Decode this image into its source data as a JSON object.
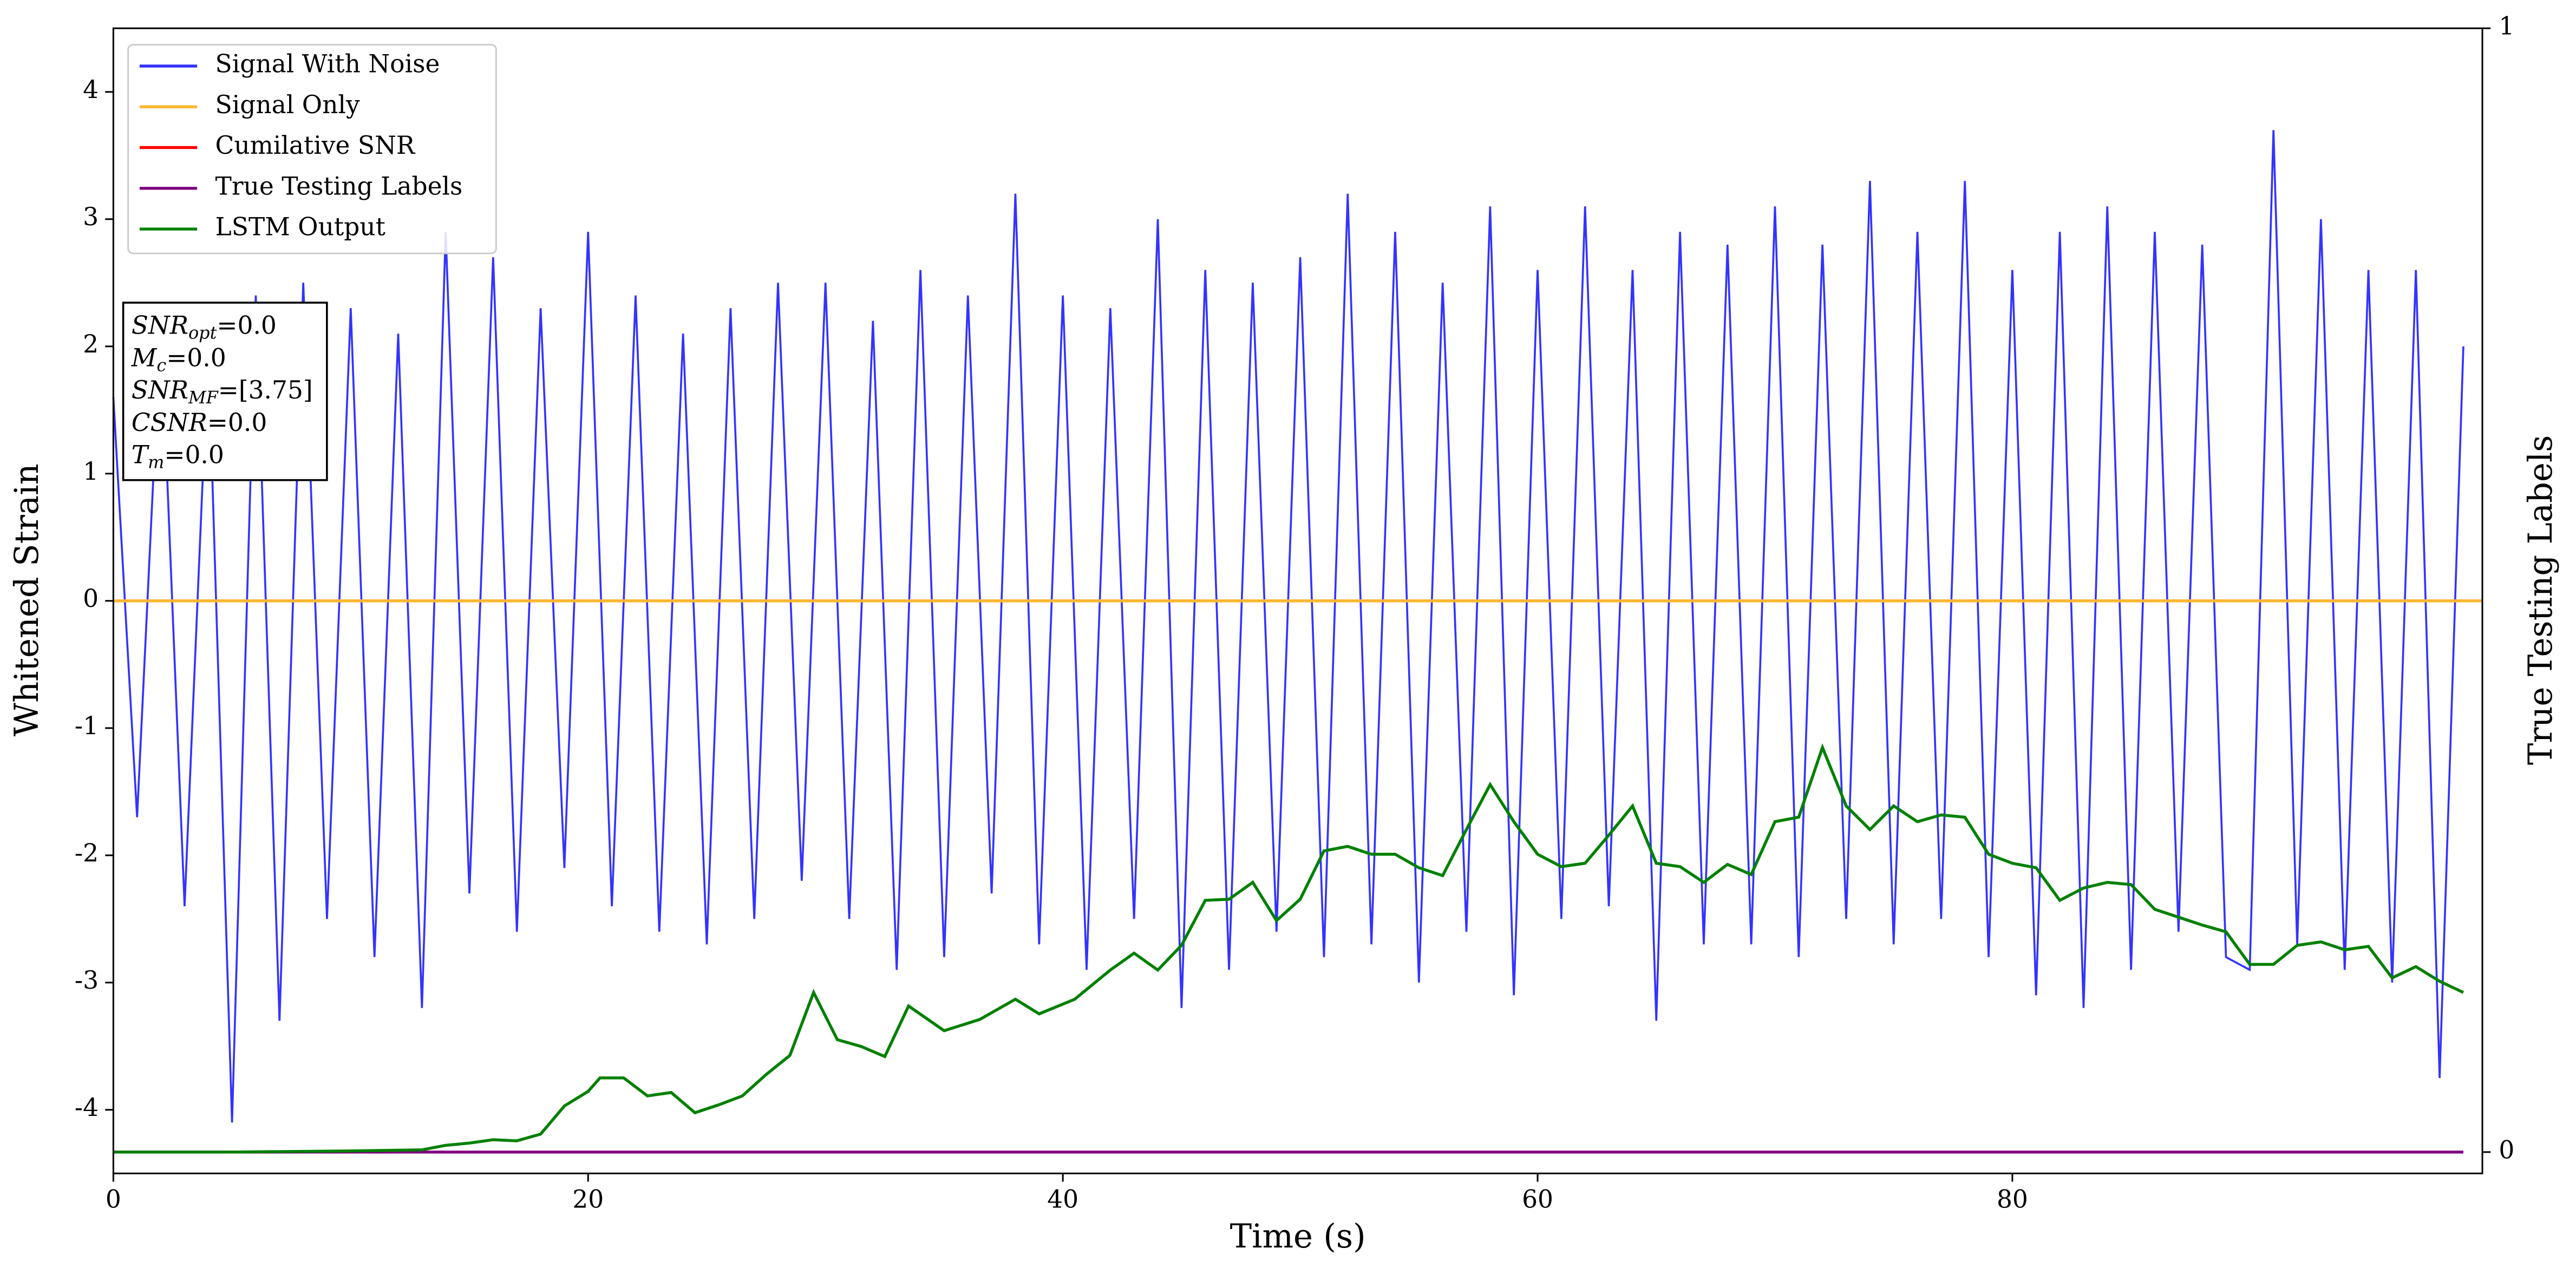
{
  "chart_data": {
    "type": "line",
    "xlabel": "Time (s)",
    "ylabel": "Whitened Strain",
    "y2label": "True Testing Labels",
    "xlim": [
      0,
      99.8
    ],
    "ylim": [
      -4.5,
      4.5
    ],
    "y2lim": [
      -0.019,
      1
    ],
    "xticks": [
      0,
      20,
      40,
      60,
      80
    ],
    "yticks": [
      -4,
      -3,
      -2,
      -1,
      0,
      1,
      2,
      3,
      4
    ],
    "y2ticks": [
      0,
      1
    ],
    "legend": "upper left",
    "annotation": [
      {
        "name": "SNR",
        "sub": "opt",
        "value": "=0.0"
      },
      {
        "name": "M",
        "sub": "c",
        "value": "=0.0"
      },
      {
        "name": "SNR",
        "sub": "MF",
        "value": "=[3.75]"
      },
      {
        "name": "CSNR",
        "value": "=0.0"
      },
      {
        "name": "T",
        "sub": "m",
        "value": "=0.0"
      }
    ],
    "series": [
      {
        "name": "Signal With Noise",
        "color": "#3333ff",
        "axis": "y",
        "x": [
          0,
          1,
          2,
          3,
          4,
          5,
          6,
          7,
          8,
          9,
          10,
          11,
          12,
          13,
          14,
          15,
          16,
          17,
          18,
          19,
          20,
          21,
          22,
          23,
          24,
          25,
          26,
          27,
          28,
          29,
          30,
          31,
          32,
          33,
          34,
          35,
          36,
          37,
          38,
          39,
          40,
          41,
          42,
          43,
          44,
          45,
          46,
          47,
          48,
          49,
          50,
          51,
          52,
          53,
          54,
          55,
          56,
          57,
          58,
          59,
          60,
          61,
          62,
          63,
          64,
          65,
          66,
          67,
          68,
          69,
          70,
          71,
          72,
          73,
          74,
          75,
          76,
          77,
          78,
          79,
          80,
          81,
          82,
          83,
          84,
          85,
          86,
          87,
          88,
          89,
          90,
          91,
          92,
          93,
          94,
          95,
          96,
          97,
          98,
          99
        ],
        "values": [
          1.6,
          -1.7,
          2.2,
          -2.4,
          2.0,
          -4.1,
          2.4,
          -3.3,
          2.5,
          -2.5,
          2.3,
          -2.8,
          2.1,
          -3.2,
          2.9,
          -2.3,
          2.7,
          -2.6,
          2.3,
          -2.1,
          2.9,
          -2.4,
          2.4,
          -2.6,
          2.1,
          -2.7,
          2.3,
          -2.5,
          2.5,
          -2.2,
          2.5,
          -2.5,
          2.2,
          -2.9,
          2.6,
          -2.8,
          2.4,
          -2.3,
          3.2,
          -2.7,
          2.4,
          -2.9,
          2.3,
          -2.5,
          3.0,
          -3.2,
          2.6,
          -2.9,
          2.5,
          -2.6,
          2.7,
          -2.8,
          3.2,
          -2.7,
          2.9,
          -3.0,
          2.5,
          -2.6,
          3.1,
          -3.1,
          2.6,
          -2.5,
          3.1,
          -2.4,
          2.6,
          -3.3,
          2.9,
          -2.7,
          2.8,
          -2.7,
          3.1,
          -2.8,
          2.8,
          -2.5,
          3.3,
          -2.7,
          2.9,
          -2.5,
          3.3,
          -2.8,
          2.6,
          -3.1,
          2.9,
          -3.2,
          3.1,
          -2.9,
          2.9,
          -2.6,
          2.8,
          -2.8,
          -2.9,
          3.7,
          -2.7,
          3.0,
          -2.9,
          2.6,
          -3.0,
          2.6,
          -3.75,
          2.0
        ]
      },
      {
        "name": "Signal Only",
        "color": "#ffb732",
        "axis": "y",
        "x": [
          0,
          99.8
        ],
        "values": [
          0,
          0
        ]
      },
      {
        "name": "Cumilative SNR",
        "color": "#ff0000",
        "axis": "y",
        "x": [
          0,
          99.8
        ],
        "values": [
          0,
          0
        ]
      },
      {
        "name": "True Testing Labels",
        "color": "#800080",
        "axis": "y2",
        "x": [
          0,
          99
        ],
        "values": [
          0,
          0
        ]
      },
      {
        "name": "LSTM Output",
        "color": "#008000",
        "axis": "y2",
        "x": [
          0,
          5,
          10,
          13,
          14,
          15,
          16,
          17,
          18,
          19,
          20,
          20.5,
          21.5,
          22.5,
          23.5,
          24.5,
          25.5,
          26.5,
          27.5,
          28.5,
          29.5,
          30.5,
          31.5,
          32.5,
          33.5,
          35,
          36.5,
          38,
          39,
          40.5,
          42,
          43,
          44,
          45,
          46,
          47,
          48,
          49,
          50,
          51,
          52,
          53,
          54,
          55,
          56,
          57,
          58,
          59,
          60,
          61,
          62,
          63,
          64,
          65,
          66,
          67,
          68,
          69,
          70,
          71,
          72,
          73,
          74,
          75,
          76,
          77,
          78,
          79,
          80,
          81,
          82,
          83,
          84,
          85,
          86,
          87,
          88,
          89,
          90,
          91,
          92,
          93,
          94,
          95,
          96,
          97,
          98,
          99
        ],
        "values": [
          0,
          0,
          0.001,
          0.002,
          0.006,
          0.008,
          0.011,
          0.01,
          0.016,
          0.041,
          0.054,
          0.066,
          0.066,
          0.05,
          0.053,
          0.035,
          0.042,
          0.05,
          0.069,
          0.086,
          0.142,
          0.1,
          0.094,
          0.085,
          0.13,
          0.108,
          0.118,
          0.136,
          0.123,
          0.136,
          0.162,
          0.177,
          0.162,
          0.184,
          0.224,
          0.225,
          0.24,
          0.206,
          0.225,
          0.268,
          0.272,
          0.265,
          0.265,
          0.253,
          0.246,
          0.287,
          0.327,
          0.294,
          0.265,
          0.254,
          0.257,
          0.282,
          0.308,
          0.257,
          0.254,
          0.24,
          0.256,
          0.247,
          0.294,
          0.298,
          0.36,
          0.308,
          0.287,
          0.308,
          0.294,
          0.3,
          0.298,
          0.265,
          0.257,
          0.253,
          0.224,
          0.235,
          0.24,
          0.238,
          0.216,
          0.209,
          0.202,
          0.196,
          0.167,
          0.167,
          0.184,
          0.187,
          0.18,
          0.183,
          0.155,
          0.165,
          0.152,
          0.142
        ]
      }
    ]
  }
}
